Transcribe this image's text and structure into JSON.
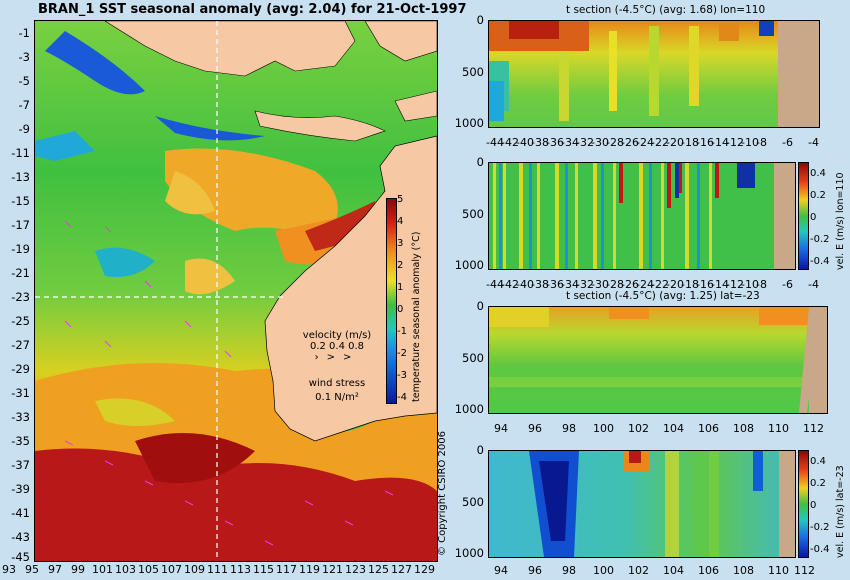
{
  "map": {
    "title": "BRAN_1  SST seasonal anomaly (avg: 2.04) for 21-Oct-1997",
    "lat_ticks": [
      "-1",
      "-3",
      "-5",
      "-7",
      "-9",
      "-11",
      "-13",
      "-15",
      "-17",
      "-19",
      "-21",
      "-23",
      "-25",
      "-27",
      "-29",
      "-31",
      "-33",
      "-35",
      "-37",
      "-39",
      "-41",
      "-43",
      "-45"
    ],
    "lon_ticks": [
      "93",
      "95",
      "97",
      "99",
      "101",
      "103",
      "105",
      "107",
      "109",
      "111",
      "113",
      "115",
      "117",
      "119",
      "121",
      "123",
      "125",
      "127",
      "129"
    ],
    "colorbar": {
      "label": "temperature seasonal anomaly (°C)",
      "ticks": [
        "5",
        "4",
        "3",
        "2",
        "1",
        "0",
        "-1",
        "-2",
        "-3",
        "-4"
      ]
    },
    "velocity_legend": {
      "title": "velocity (m/s)",
      "values": "0.2 0.4 0.8"
    },
    "wind_legend": {
      "title": "wind stress",
      "value": "0.1 N/m²"
    },
    "colors": {
      "land": "#f6c8a4",
      "hot": "#b8141a",
      "warm": "#f0a020",
      "mid": "#2fbf4a",
      "cool": "#1a58d8"
    }
  },
  "panel1": {
    "title": "t section (-4.5°C) (avg: 1.68) lon=110",
    "y_ticks": [
      "0",
      "500",
      "1000"
    ],
    "x_ticks": [
      "-44",
      "-42",
      "-40",
      "-38",
      "-36",
      "-34",
      "-32",
      "-30",
      "-28",
      "-26",
      "-24",
      "-22",
      "-20",
      "-18",
      "-16",
      "-14",
      "-12",
      "-10",
      "-8",
      "-6",
      "-4"
    ]
  },
  "panel2": {
    "y_ticks": [
      "0",
      "500",
      "1000"
    ],
    "x_ticks": [
      "-44",
      "-42",
      "-40",
      "-38",
      "-36",
      "-34",
      "-32",
      "-30",
      "-28",
      "-26",
      "-24",
      "-22",
      "-20",
      "-18",
      "-16",
      "-14",
      "-12",
      "-10",
      "-8",
      "-6",
      "-4"
    ],
    "colorbar_label": "vel. E (m/s) lon=110",
    "colorbar_ticks": [
      "0.4",
      "0.2",
      "0",
      "-0.2",
      "-0.4"
    ]
  },
  "panel3": {
    "title": "t section (-4.5°C) (avg: 1.25) lat=-23",
    "y_ticks": [
      "0",
      "500",
      "1000"
    ],
    "x_ticks": [
      "94",
      "96",
      "98",
      "100",
      "102",
      "104",
      "106",
      "108",
      "110",
      "112"
    ]
  },
  "panel4": {
    "y_ticks": [
      "0",
      "500",
      "1000"
    ],
    "x_ticks": [
      "94",
      "96",
      "98",
      "100",
      "102",
      "104",
      "106",
      "108",
      "110",
      "112"
    ],
    "colorbar_label": "vel. E (m/s) lat=-23",
    "colorbar_ticks": [
      "0.4",
      "0.2",
      "0",
      "-0.2",
      "-0.4"
    ]
  },
  "copyright": "© Copyright CSIRO 2006"
}
